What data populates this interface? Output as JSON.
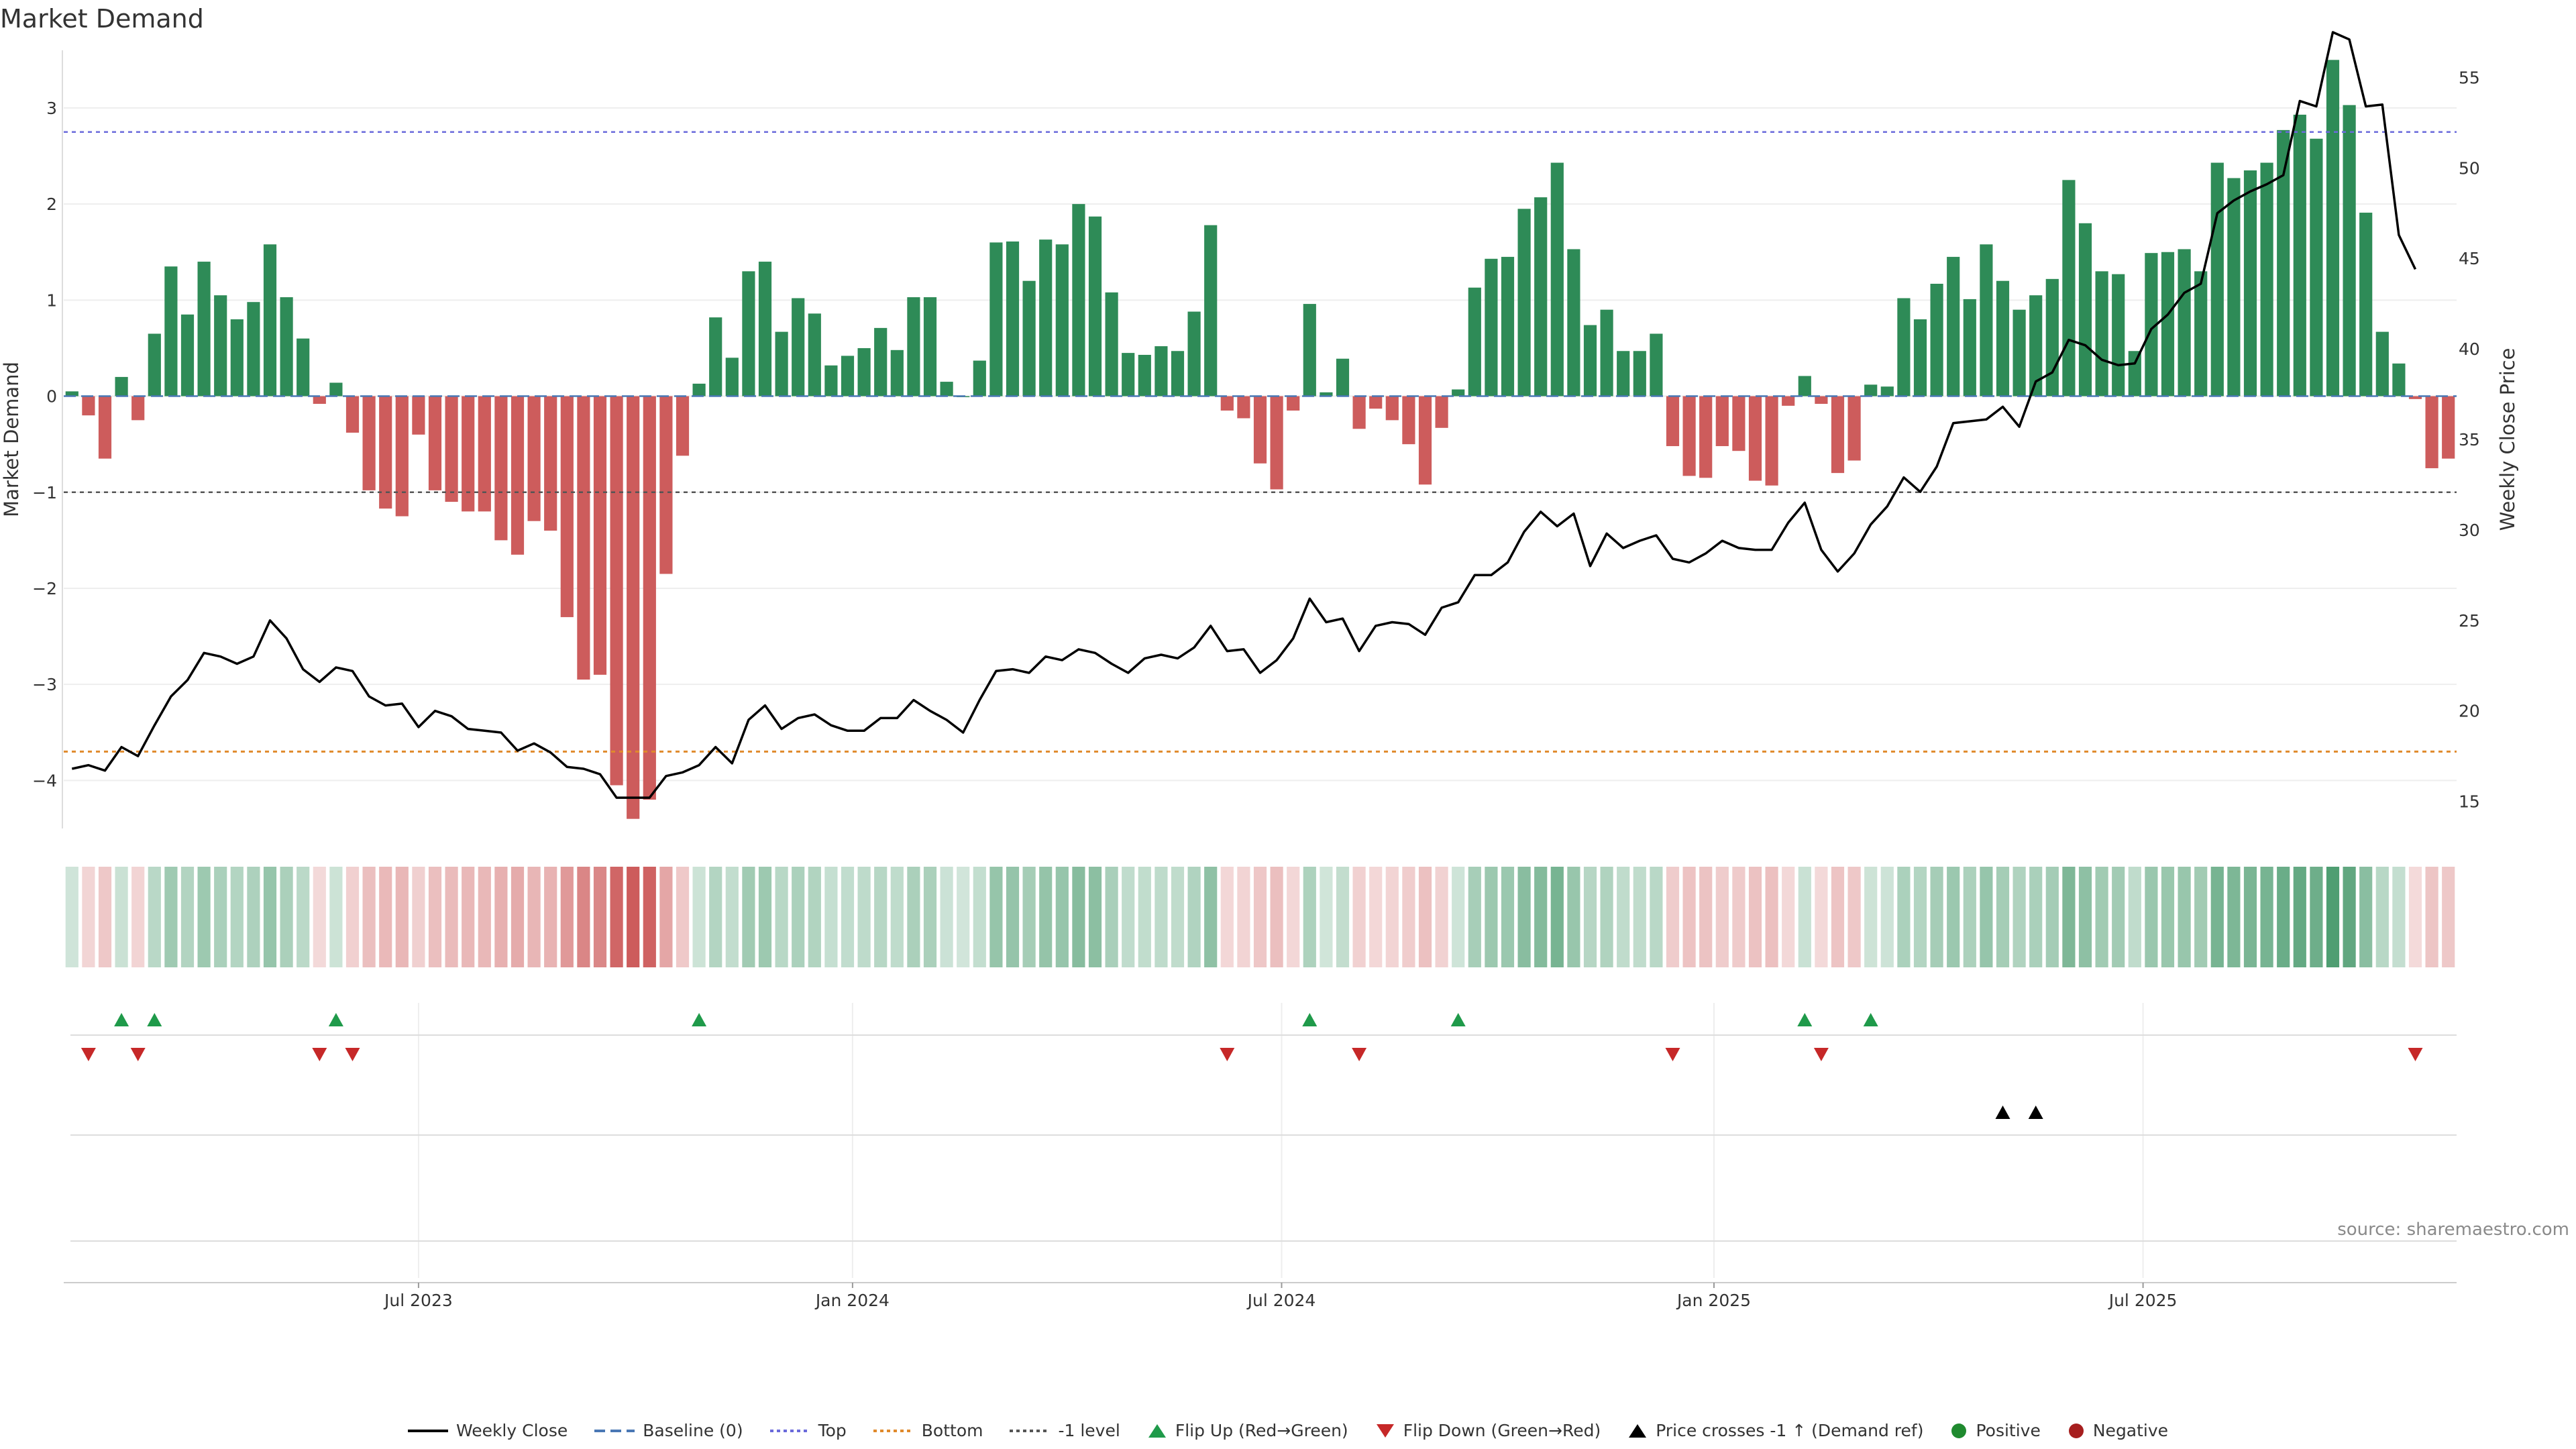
{
  "chart_data": {
    "type": "bar",
    "title": "Market Demand",
    "ylabel_left": "Market Demand",
    "ylabel_right": "Weekly Close Price",
    "ylim_left": [
      -4.5,
      3.6
    ],
    "ylim_right": [
      13.5,
      56.5
    ],
    "left_ticks": [
      3,
      2,
      1,
      0,
      -1,
      -2,
      -3,
      -4
    ],
    "right_ticks": [
      55,
      50,
      45,
      40,
      35,
      30,
      25,
      20,
      15
    ],
    "x_ticks": [
      "Jul 2023",
      "Jan 2024",
      "Jul 2024",
      "Jan 2025",
      "Jul 2025"
    ],
    "x_tick_weeks": [
      21.5,
      47.8,
      73.8,
      100,
      126
    ],
    "reference_lines": {
      "top": 2.75,
      "bottom": -3.7,
      "minus_one": -1,
      "baseline": 0
    },
    "colors": {
      "positive": "#2e8b57",
      "negative": "#cd5c5c",
      "top_line": "#6a6adb",
      "bottom_line": "#e08a2c",
      "minus_one_line": "#555555",
      "baseline": "#4a78b5",
      "flip_up": "#1f9a4a",
      "flip_down": "#c62828",
      "price_line": "#000000"
    },
    "demand": [
      0.05,
      -0.2,
      -0.65,
      0.2,
      -0.25,
      0.65,
      1.35,
      0.85,
      1.4,
      1.05,
      0.8,
      0.98,
      1.58,
      1.03,
      0.6,
      -0.08,
      0.14,
      -0.38,
      -0.98,
      -1.17,
      -1.25,
      -0.4,
      -0.98,
      -1.1,
      -1.2,
      -1.2,
      -1.5,
      -1.65,
      -1.3,
      -1.4,
      -2.3,
      -2.95,
      -2.9,
      -4.05,
      -4.4,
      -4.2,
      -1.85,
      -0.62,
      0.13,
      0.82,
      0.4,
      1.3,
      1.4,
      0.67,
      1.02,
      0.86,
      0.32,
      0.42,
      0.5,
      0.71,
      0.48,
      1.03,
      1.03,
      0.15,
      0.0,
      0.37,
      1.6,
      1.61,
      1.2,
      1.63,
      1.58,
      2.0,
      1.87,
      1.08,
      0.45,
      0.43,
      0.52,
      0.47,
      0.88,
      1.78,
      -0.15,
      -0.23,
      -0.7,
      -0.97,
      -0.15,
      0.96,
      0.04,
      0.39,
      -0.34,
      -0.13,
      -0.25,
      -0.5,
      -0.92,
      -0.33,
      0.07,
      1.13,
      1.43,
      1.45,
      1.95,
      2.07,
      2.43,
      1.53,
      0.74,
      0.9,
      0.47,
      0.47,
      0.65,
      -0.52,
      -0.83,
      -0.85,
      -0.52,
      -0.57,
      -0.88,
      -0.93,
      -0.1,
      0.21,
      -0.08,
      -0.8,
      -0.67,
      0.12,
      0.1,
      1.02,
      0.8,
      1.17,
      1.45,
      1.01,
      1.58,
      1.2,
      0.9,
      1.05,
      1.22,
      2.25,
      1.8,
      1.3,
      1.27,
      0.47,
      1.49,
      1.5,
      1.53,
      1.3,
      2.43,
      2.27,
      2.35,
      2.43,
      2.77,
      2.93,
      2.68,
      3.5,
      3.03,
      1.91,
      0.67,
      0.34,
      -0.03,
      -0.75,
      -0.65
    ],
    "close": [
      16.8,
      17.0,
      16.7,
      18.0,
      17.5,
      19.2,
      20.8,
      21.7,
      23.2,
      23.0,
      22.6,
      23.0,
      25.0,
      24.0,
      22.3,
      21.6,
      22.4,
      22.2,
      20.8,
      20.3,
      20.4,
      19.1,
      20.0,
      19.7,
      19.0,
      18.9,
      18.8,
      17.8,
      18.2,
      17.7,
      16.9,
      16.8,
      16.5,
      15.2,
      15.2,
      15.2,
      16.4,
      16.6,
      17.0,
      18.0,
      17.1,
      19.5,
      20.3,
      19.0,
      19.6,
      19.8,
      19.2,
      18.9,
      18.9,
      19.6,
      19.6,
      20.6,
      20.0,
      19.5,
      18.8,
      20.6,
      22.2,
      22.3,
      22.1,
      23.0,
      22.8,
      23.4,
      23.2,
      22.6,
      22.1,
      22.9,
      23.1,
      22.9,
      23.5,
      24.7,
      23.3,
      23.4,
      22.1,
      22.8,
      24.0,
      26.2,
      24.9,
      25.1,
      23.3,
      24.7,
      24.9,
      24.8,
      24.2,
      25.7,
      26.0,
      27.5,
      27.5,
      28.2,
      29.9,
      31.0,
      30.2,
      30.9,
      28.0,
      29.8,
      29.0,
      29.4,
      29.7,
      28.4,
      28.2,
      28.7,
      29.4,
      29.0,
      28.9,
      28.9,
      30.4,
      31.5,
      28.9,
      27.7,
      28.7,
      30.3,
      31.3,
      32.9,
      32.1,
      33.5,
      35.9,
      36.0,
      36.1,
      36.8,
      35.7,
      38.2,
      38.7,
      40.5,
      40.2,
      39.4,
      39.1,
      39.2,
      41.1,
      41.9,
      43.1,
      43.6,
      47.5,
      48.2,
      48.7,
      49.1,
      49.6,
      53.7,
      53.4,
      57.5,
      57.1,
      53.4,
      53.5,
      46.3,
      44.4
    ],
    "flip_up_weeks": [
      3,
      5,
      16,
      38,
      75,
      84,
      105,
      109
    ],
    "flip_down_weeks": [
      1,
      4,
      15,
      17,
      70,
      78,
      97,
      106,
      142
    ],
    "price_cross_weeks": [
      117,
      119
    ],
    "legend": [
      "Weekly Close",
      "Baseline (0)",
      "Top",
      "Bottom",
      "-1 level",
      "Flip Up (Red→Green)",
      "Flip Down (Green→Red)",
      "Price crosses -1 ↑ (Demand ref)",
      "Positive",
      "Negative"
    ],
    "source": "source: sharemaestro.com"
  }
}
